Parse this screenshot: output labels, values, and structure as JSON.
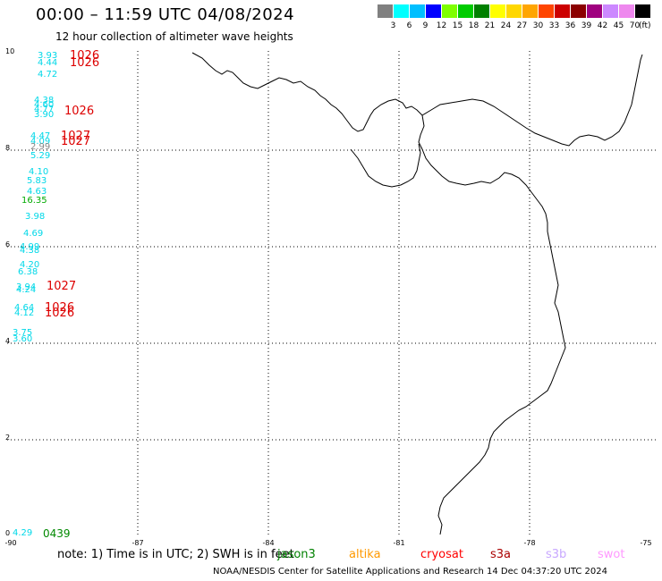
{
  "title": "00:00 – 11:59 UTC 04/08/2024",
  "subtitle": "12 hour collection of altimeter wave heights",
  "color_scale": {
    "unit": "(ft)",
    "ticks": [
      "3",
      "6",
      "9",
      "12",
      "15",
      "18",
      "21",
      "24",
      "27",
      "30",
      "33",
      "36",
      "39",
      "42",
      "45",
      "70"
    ],
    "colors": [
      "#808080",
      "#00ffff",
      "#00bfff",
      "#0000ff",
      "#7fff00",
      "#00cc00",
      "#008000",
      "#ffff00",
      "#ffd700",
      "#ffa500",
      "#ff4500",
      "#cc0000",
      "#8b0000",
      "#a0007f",
      "#cc88ff",
      "#ee88ee",
      "#000000"
    ]
  },
  "map": {
    "y_axis_labels": [
      "10",
      "8",
      "6",
      "4",
      "2",
      "0"
    ],
    "x_axis_labels": [
      "-90",
      "-87",
      "-84",
      "-81",
      "-78",
      "-75"
    ],
    "points": [
      {
        "text": "3.93",
        "color": "#00d8e8"
      },
      {
        "text": "4.44",
        "color": "#00d8e8"
      },
      {
        "text": "1026",
        "color": "#dd0000"
      },
      {
        "text": "1026",
        "color": "#dd0000"
      },
      {
        "text": "4.72",
        "color": "#00d8e8"
      },
      {
        "text": "4.38",
        "color": "#00d8e8"
      },
      {
        "text": "4.60",
        "color": "#00d8e8"
      },
      {
        "text": "4.77",
        "color": "#00d8e8"
      },
      {
        "text": "3.90",
        "color": "#00d8e8"
      },
      {
        "text": "1026",
        "color": "#dd0000"
      },
      {
        "text": "4.47",
        "color": "#00d8e8"
      },
      {
        "text": "1027",
        "color": "#dd0000"
      },
      {
        "text": "4.09",
        "color": "#00d8e8"
      },
      {
        "text": "1027",
        "color": "#dd0000"
      },
      {
        "text": "2.99",
        "color": "#888888"
      },
      {
        "text": "5.29",
        "color": "#00d8e8"
      },
      {
        "text": "4.10",
        "color": "#00d8e8"
      },
      {
        "text": "5.83",
        "color": "#00d8e8"
      },
      {
        "text": "4.63",
        "color": "#00d8e8"
      },
      {
        "text": "16.35",
        "color": "#00aa00"
      },
      {
        "text": "3.98",
        "color": "#00d8e8"
      },
      {
        "text": "4.69",
        "color": "#00d8e8"
      },
      {
        "text": "4.99",
        "color": "#00d8e8"
      },
      {
        "text": "4.38",
        "color": "#00d8e8"
      },
      {
        "text": "4.20",
        "color": "#00d8e8"
      },
      {
        "text": "6.38",
        "color": "#00d8e8"
      },
      {
        "text": "3.94",
        "color": "#00d8e8"
      },
      {
        "text": "4.24",
        "color": "#00d8e8"
      },
      {
        "text": "1027",
        "color": "#dd0000"
      },
      {
        "text": "4.64",
        "color": "#00d8e8"
      },
      {
        "text": "1026",
        "color": "#dd0000"
      },
      {
        "text": "4.12",
        "color": "#00d8e8"
      },
      {
        "text": "1026",
        "color": "#dd0000"
      },
      {
        "text": "3.75",
        "color": "#00d8e8"
      },
      {
        "text": "3.60",
        "color": "#00d8e8"
      },
      {
        "text": "4.29",
        "color": "#00d8e8"
      },
      {
        "text": "0439",
        "color": "#008800"
      }
    ]
  },
  "note": "note:  1) Time is in UTC; 2) SWH is in feet",
  "satellites": [
    {
      "name": "jason3",
      "color": "#008000"
    },
    {
      "name": "altika",
      "color": "#ff9900"
    },
    {
      "name": "cryosat",
      "color": "#ff0000"
    },
    {
      "name": "s3a",
      "color": "#aa0000"
    },
    {
      "name": "s3b",
      "color": "#c8a8ff"
    },
    {
      "name": "swot",
      "color": "#ff99ff"
    }
  ],
  "footer": "NOAA/NESDIS Center for Satellite Applications and Research    14 Dec 04:37:20 UTC 2024"
}
